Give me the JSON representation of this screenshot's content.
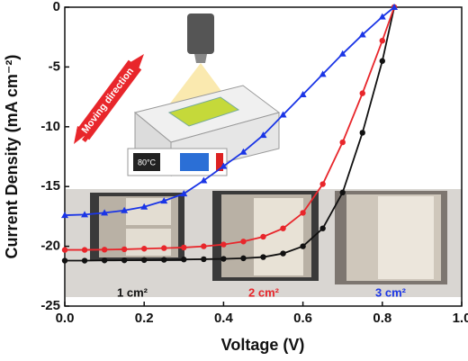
{
  "chart_data": {
    "type": "line",
    "x_label": "Voltage (V)",
    "y_label": "Current Density (mA cm⁻²)",
    "xlim": [
      0,
      1.0
    ],
    "ylim": [
      -25,
      0
    ],
    "xticks": [
      {
        "value": 0,
        "label": "0.0"
      },
      0.2,
      0.4,
      0.6,
      0.8,
      {
        "value": 1.0,
        "label": "1.0"
      }
    ],
    "yticks": [
      -25,
      -20,
      -15,
      -10,
      -5,
      0
    ],
    "x": [
      0,
      0.05,
      0.1,
      0.15,
      0.2,
      0.25,
      0.3,
      0.35,
      0.4,
      0.45,
      0.5,
      0.55,
      0.6,
      0.65,
      0.7,
      0.75,
      0.8,
      0.83
    ],
    "series": [
      {
        "name": "1 cm²",
        "color": "#111111",
        "marker": "circle",
        "values": [
          -21.2,
          -21.2,
          -21.18,
          -21.17,
          -21.15,
          -21.13,
          -21.1,
          -21.08,
          -21.05,
          -21.0,
          -20.9,
          -20.6,
          -20.0,
          -18.5,
          -15.5,
          -10.5,
          -4.5,
          0
        ]
      },
      {
        "name": "2 cm²",
        "color": "#e8262b",
        "marker": "circle",
        "values": [
          -20.3,
          -20.3,
          -20.28,
          -20.25,
          -20.2,
          -20.15,
          -20.1,
          -20.0,
          -19.85,
          -19.6,
          -19.2,
          -18.5,
          -17.2,
          -14.8,
          -11.3,
          -7.2,
          -2.8,
          0
        ]
      },
      {
        "name": "3 cm²",
        "color": "#1a35e6",
        "marker": "triangle",
        "values": [
          -17.4,
          -17.35,
          -17.2,
          -17.0,
          -16.7,
          -16.2,
          -15.6,
          -14.5,
          -13.3,
          -12.1,
          -10.7,
          -9.0,
          -7.3,
          -5.6,
          -3.9,
          -2.3,
          -0.8,
          0
        ]
      }
    ],
    "annotations": [
      "Moving direction",
      "80°C"
    ]
  }
}
